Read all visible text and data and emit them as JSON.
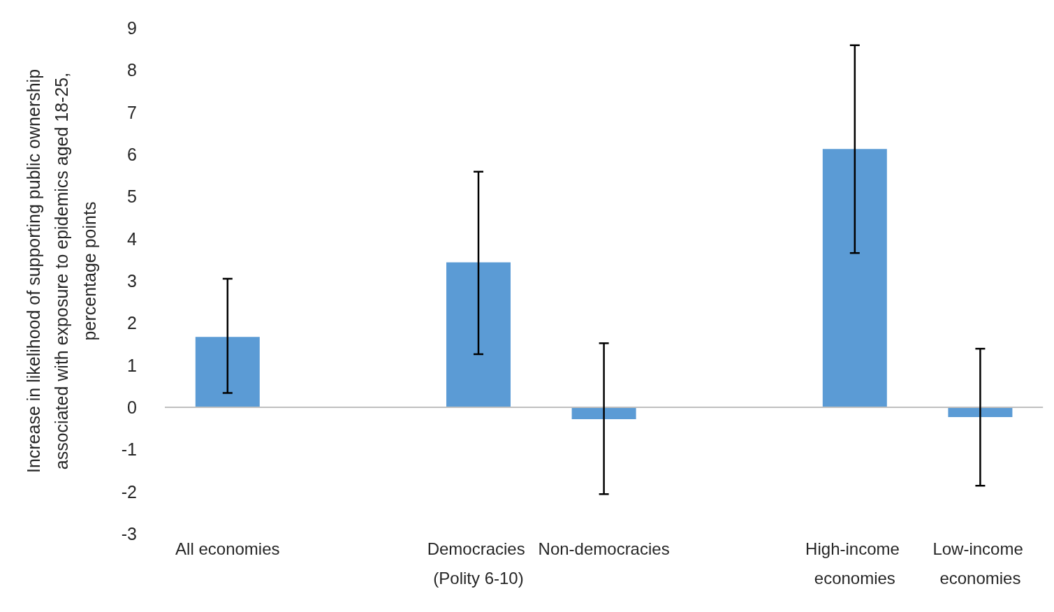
{
  "chart_data": {
    "type": "bar",
    "ylabel": "Increase in likelihood of supporting public ownership associated with exposure to epidemics aged 18-25, percentage points",
    "categories": [
      "All economies",
      null,
      "Democracies (Polity 6-10)",
      "Non-democracies",
      null,
      "High-income economies",
      "Low-income economies"
    ],
    "values": [
      1.67,
      null,
      3.44,
      -0.28,
      null,
      6.13,
      -0.23
    ],
    "errors": [
      [
        0.34,
        3.05
      ],
      null,
      [
        1.26,
        5.59
      ],
      [
        -2.06,
        1.52
      ],
      null,
      [
        3.66,
        8.59
      ],
      [
        -1.86,
        1.39
      ]
    ],
    "color": "#5b9bd5",
    "ylim": [
      -3,
      9
    ],
    "yticks": [
      -3,
      -2,
      -1,
      0,
      1,
      2,
      3,
      4,
      5,
      6,
      7,
      8,
      9
    ],
    "grid": false,
    "ref_lines": [
      {
        "axis": "y",
        "value": 0,
        "color": "#bfbfbf"
      }
    ]
  }
}
